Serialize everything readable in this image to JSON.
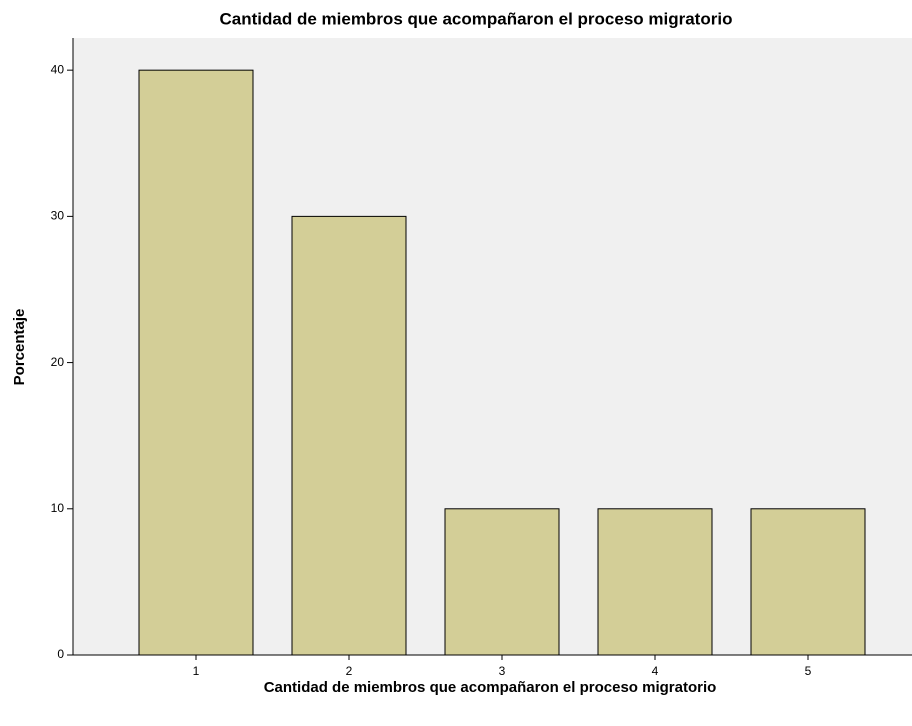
{
  "chart_data": {
    "type": "bar",
    "title": "Cantidad de miembros que acompañaron el proceso migratorio",
    "x_label": "Cantidad de miembros que acompañaron el proceso migratorio",
    "y_label": "Porcentaje",
    "categories": [
      "1",
      "2",
      "3",
      "4",
      "5"
    ],
    "values": [
      40,
      30,
      10,
      10,
      10
    ],
    "color": "#d3ce97",
    "ylim": [
      0,
      42.2
    ],
    "yticks": [
      0,
      10,
      20,
      30,
      40
    ],
    "grid": false
  }
}
